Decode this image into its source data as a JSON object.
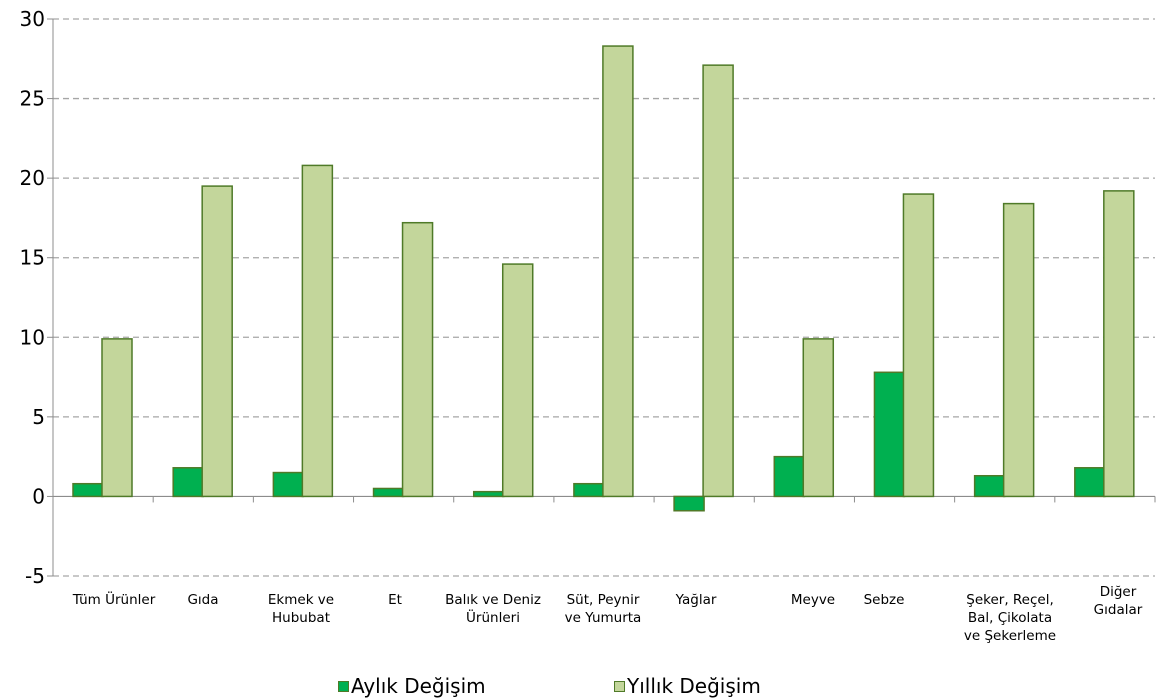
{
  "chart_data": {
    "type": "bar",
    "categories": [
      [
        "Tüm Ürünler"
      ],
      [
        "Gıda"
      ],
      [
        "Ekmek ve",
        "Hububat"
      ],
      [
        "Et"
      ],
      [
        "Balık ve Deniz",
        "Ürünleri"
      ],
      [
        "Süt, Peynir",
        "ve Yumurta"
      ],
      [
        "Yağlar"
      ],
      [
        "Meyve"
      ],
      [
        "Sebze"
      ],
      [
        "Şeker, Reçel,",
        "Bal, Çikolata",
        "ve Şekerleme"
      ],
      [
        "Diğer",
        "Gıdalar"
      ]
    ],
    "series": [
      {
        "name": "Aylık Değişim",
        "color": "#00b050",
        "values": [
          0.8,
          1.8,
          1.5,
          0.5,
          0.3,
          0.8,
          -0.9,
          2.5,
          7.8,
          1.3,
          1.8
        ]
      },
      {
        "name": "Yıllık Değişim",
        "color": "#c3d69b",
        "values": [
          9.9,
          19.5,
          20.8,
          17.2,
          14.6,
          28.3,
          27.1,
          9.9,
          19.0,
          18.4,
          19.2
        ]
      }
    ],
    "ylim": [
      -5,
      30
    ],
    "yticks": [
      -5,
      0,
      5,
      10,
      15,
      20,
      25,
      30
    ],
    "grid": true,
    "legend_position": "bottom",
    "bar_edge_color": "#4f7a28"
  },
  "legend": {
    "monthly_label": "Aylık Değişim",
    "yearly_label": "Yıllık Değişim"
  }
}
